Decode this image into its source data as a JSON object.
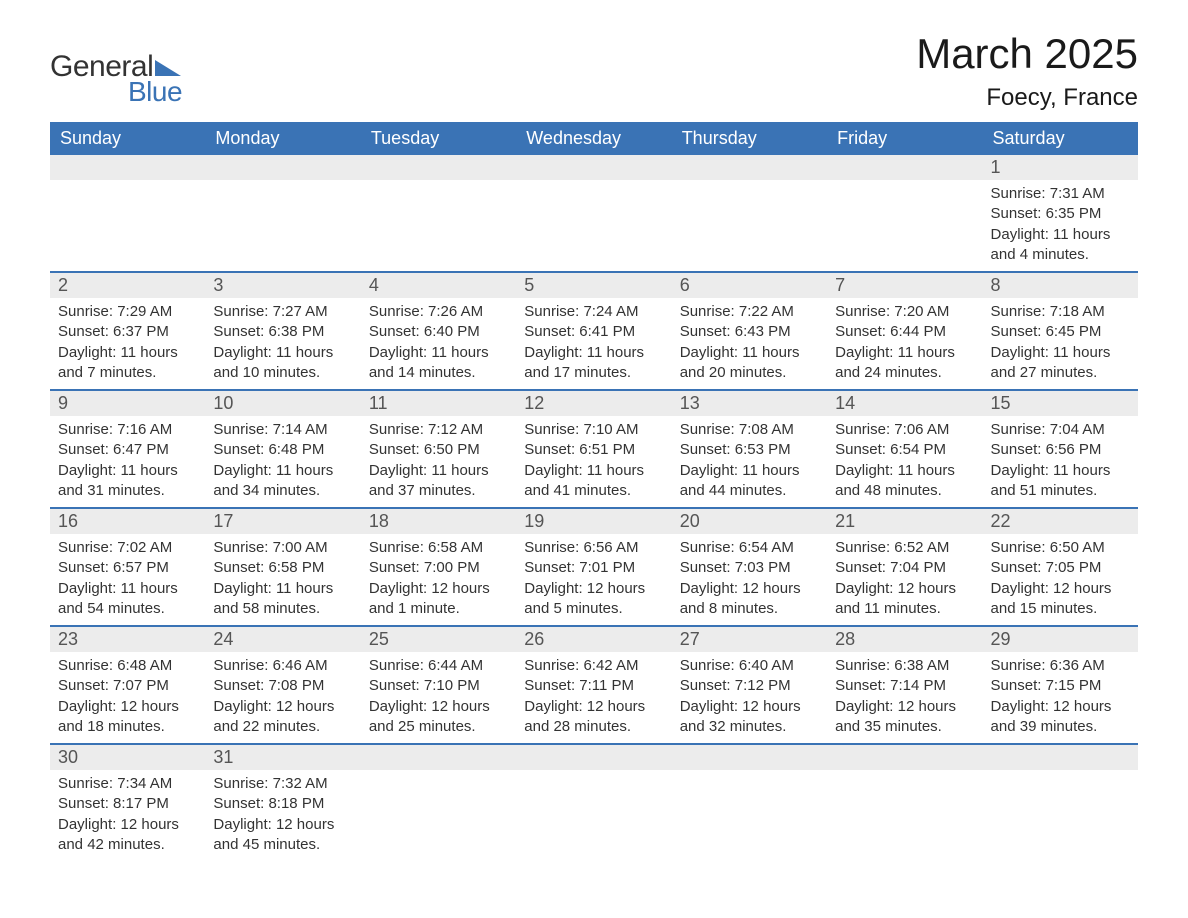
{
  "logo": {
    "text1": "General",
    "text2": "Blue"
  },
  "title": "March 2025",
  "location": "Foecy, France",
  "colors": {
    "header_bg": "#3a73b5",
    "header_text": "#ffffff",
    "daynum_bg": "#ececec",
    "border": "#3a73b5",
    "body_text": "#333333"
  },
  "day_headers": [
    "Sunday",
    "Monday",
    "Tuesday",
    "Wednesday",
    "Thursday",
    "Friday",
    "Saturday"
  ],
  "weeks": [
    {
      "nums": [
        "",
        "",
        "",
        "",
        "",
        "",
        "1"
      ],
      "cells": [
        null,
        null,
        null,
        null,
        null,
        null,
        {
          "sunrise": "Sunrise: 7:31 AM",
          "sunset": "Sunset: 6:35 PM",
          "day1": "Daylight: 11 hours",
          "day2": "and 4 minutes."
        }
      ]
    },
    {
      "nums": [
        "2",
        "3",
        "4",
        "5",
        "6",
        "7",
        "8"
      ],
      "cells": [
        {
          "sunrise": "Sunrise: 7:29 AM",
          "sunset": "Sunset: 6:37 PM",
          "day1": "Daylight: 11 hours",
          "day2": "and 7 minutes."
        },
        {
          "sunrise": "Sunrise: 7:27 AM",
          "sunset": "Sunset: 6:38 PM",
          "day1": "Daylight: 11 hours",
          "day2": "and 10 minutes."
        },
        {
          "sunrise": "Sunrise: 7:26 AM",
          "sunset": "Sunset: 6:40 PM",
          "day1": "Daylight: 11 hours",
          "day2": "and 14 minutes."
        },
        {
          "sunrise": "Sunrise: 7:24 AM",
          "sunset": "Sunset: 6:41 PM",
          "day1": "Daylight: 11 hours",
          "day2": "and 17 minutes."
        },
        {
          "sunrise": "Sunrise: 7:22 AM",
          "sunset": "Sunset: 6:43 PM",
          "day1": "Daylight: 11 hours",
          "day2": "and 20 minutes."
        },
        {
          "sunrise": "Sunrise: 7:20 AM",
          "sunset": "Sunset: 6:44 PM",
          "day1": "Daylight: 11 hours",
          "day2": "and 24 minutes."
        },
        {
          "sunrise": "Sunrise: 7:18 AM",
          "sunset": "Sunset: 6:45 PM",
          "day1": "Daylight: 11 hours",
          "day2": "and 27 minutes."
        }
      ]
    },
    {
      "nums": [
        "9",
        "10",
        "11",
        "12",
        "13",
        "14",
        "15"
      ],
      "cells": [
        {
          "sunrise": "Sunrise: 7:16 AM",
          "sunset": "Sunset: 6:47 PM",
          "day1": "Daylight: 11 hours",
          "day2": "and 31 minutes."
        },
        {
          "sunrise": "Sunrise: 7:14 AM",
          "sunset": "Sunset: 6:48 PM",
          "day1": "Daylight: 11 hours",
          "day2": "and 34 minutes."
        },
        {
          "sunrise": "Sunrise: 7:12 AM",
          "sunset": "Sunset: 6:50 PM",
          "day1": "Daylight: 11 hours",
          "day2": "and 37 minutes."
        },
        {
          "sunrise": "Sunrise: 7:10 AM",
          "sunset": "Sunset: 6:51 PM",
          "day1": "Daylight: 11 hours",
          "day2": "and 41 minutes."
        },
        {
          "sunrise": "Sunrise: 7:08 AM",
          "sunset": "Sunset: 6:53 PM",
          "day1": "Daylight: 11 hours",
          "day2": "and 44 minutes."
        },
        {
          "sunrise": "Sunrise: 7:06 AM",
          "sunset": "Sunset: 6:54 PM",
          "day1": "Daylight: 11 hours",
          "day2": "and 48 minutes."
        },
        {
          "sunrise": "Sunrise: 7:04 AM",
          "sunset": "Sunset: 6:56 PM",
          "day1": "Daylight: 11 hours",
          "day2": "and 51 minutes."
        }
      ]
    },
    {
      "nums": [
        "16",
        "17",
        "18",
        "19",
        "20",
        "21",
        "22"
      ],
      "cells": [
        {
          "sunrise": "Sunrise: 7:02 AM",
          "sunset": "Sunset: 6:57 PM",
          "day1": "Daylight: 11 hours",
          "day2": "and 54 minutes."
        },
        {
          "sunrise": "Sunrise: 7:00 AM",
          "sunset": "Sunset: 6:58 PM",
          "day1": "Daylight: 11 hours",
          "day2": "and 58 minutes."
        },
        {
          "sunrise": "Sunrise: 6:58 AM",
          "sunset": "Sunset: 7:00 PM",
          "day1": "Daylight: 12 hours",
          "day2": "and 1 minute."
        },
        {
          "sunrise": "Sunrise: 6:56 AM",
          "sunset": "Sunset: 7:01 PM",
          "day1": "Daylight: 12 hours",
          "day2": "and 5 minutes."
        },
        {
          "sunrise": "Sunrise: 6:54 AM",
          "sunset": "Sunset: 7:03 PM",
          "day1": "Daylight: 12 hours",
          "day2": "and 8 minutes."
        },
        {
          "sunrise": "Sunrise: 6:52 AM",
          "sunset": "Sunset: 7:04 PM",
          "day1": "Daylight: 12 hours",
          "day2": "and 11 minutes."
        },
        {
          "sunrise": "Sunrise: 6:50 AM",
          "sunset": "Sunset: 7:05 PM",
          "day1": "Daylight: 12 hours",
          "day2": "and 15 minutes."
        }
      ]
    },
    {
      "nums": [
        "23",
        "24",
        "25",
        "26",
        "27",
        "28",
        "29"
      ],
      "cells": [
        {
          "sunrise": "Sunrise: 6:48 AM",
          "sunset": "Sunset: 7:07 PM",
          "day1": "Daylight: 12 hours",
          "day2": "and 18 minutes."
        },
        {
          "sunrise": "Sunrise: 6:46 AM",
          "sunset": "Sunset: 7:08 PM",
          "day1": "Daylight: 12 hours",
          "day2": "and 22 minutes."
        },
        {
          "sunrise": "Sunrise: 6:44 AM",
          "sunset": "Sunset: 7:10 PM",
          "day1": "Daylight: 12 hours",
          "day2": "and 25 minutes."
        },
        {
          "sunrise": "Sunrise: 6:42 AM",
          "sunset": "Sunset: 7:11 PM",
          "day1": "Daylight: 12 hours",
          "day2": "and 28 minutes."
        },
        {
          "sunrise": "Sunrise: 6:40 AM",
          "sunset": "Sunset: 7:12 PM",
          "day1": "Daylight: 12 hours",
          "day2": "and 32 minutes."
        },
        {
          "sunrise": "Sunrise: 6:38 AM",
          "sunset": "Sunset: 7:14 PM",
          "day1": "Daylight: 12 hours",
          "day2": "and 35 minutes."
        },
        {
          "sunrise": "Sunrise: 6:36 AM",
          "sunset": "Sunset: 7:15 PM",
          "day1": "Daylight: 12 hours",
          "day2": "and 39 minutes."
        }
      ]
    },
    {
      "nums": [
        "30",
        "31",
        "",
        "",
        "",
        "",
        ""
      ],
      "cells": [
        {
          "sunrise": "Sunrise: 7:34 AM",
          "sunset": "Sunset: 8:17 PM",
          "day1": "Daylight: 12 hours",
          "day2": "and 42 minutes."
        },
        {
          "sunrise": "Sunrise: 7:32 AM",
          "sunset": "Sunset: 8:18 PM",
          "day1": "Daylight: 12 hours",
          "day2": "and 45 minutes."
        },
        null,
        null,
        null,
        null,
        null
      ]
    }
  ]
}
